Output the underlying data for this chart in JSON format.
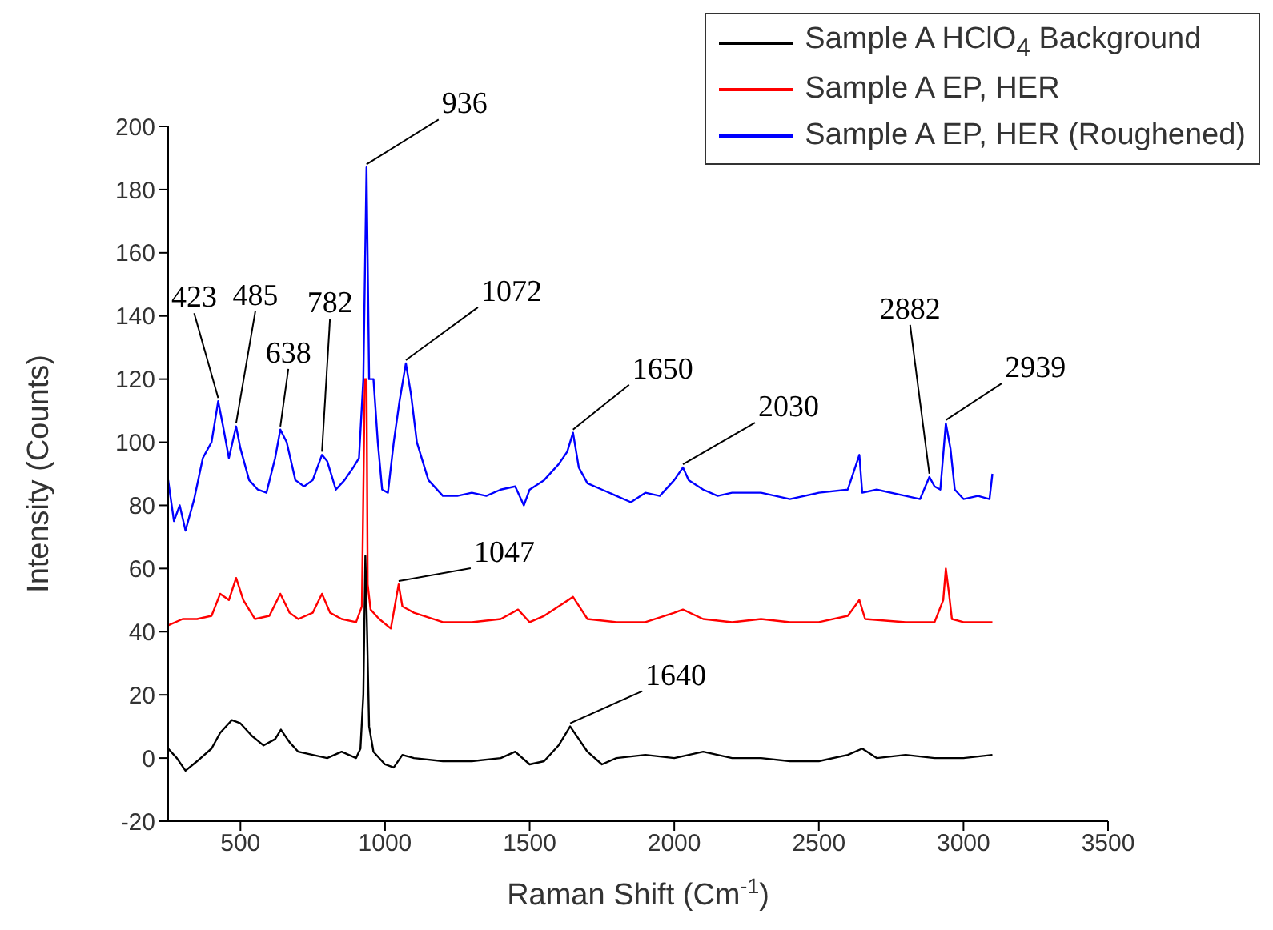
{
  "chart_data": {
    "type": "line",
    "xlabel": "Raman Shift (Cm$^{-1}$)",
    "ylabel": "Intensity (Counts)",
    "xlim": [
      250,
      3500
    ],
    "xticks": [
      500,
      1000,
      1500,
      2000,
      2500,
      3000,
      3500
    ],
    "ylim": [
      -20,
      200
    ],
    "yticks": [
      -20,
      0,
      20,
      40,
      60,
      80,
      100,
      120,
      140,
      160,
      180,
      200
    ],
    "grid": false,
    "legend": "top right",
    "marker": "none",
    "line_style": "solid",
    "series": [
      {
        "name": "Sample A HClO$_{4}$ Background",
        "color": "#000000",
        "x": [
          250,
          280,
          310,
          350,
          400,
          430,
          470,
          500,
          540,
          580,
          620,
          640,
          670,
          700,
          750,
          800,
          850,
          900,
          915,
          925,
          932,
          938,
          945,
          960,
          1000,
          1030,
          1060,
          1100,
          1200,
          1300,
          1400,
          1450,
          1500,
          1550,
          1600,
          1640,
          1670,
          1700,
          1750,
          1800,
          1900,
          2000,
          2100,
          2200,
          2300,
          2400,
          2500,
          2600,
          2650,
          2700,
          2800,
          2900,
          3000,
          3100
        ],
        "values": [
          3,
          0,
          -4,
          -1,
          3,
          8,
          12,
          11,
          7,
          4,
          6,
          9,
          5,
          2,
          1,
          0,
          2,
          0,
          3,
          20,
          64,
          40,
          10,
          2,
          -2,
          -3,
          1,
          0,
          -1,
          -1,
          0,
          2,
          -2,
          -1,
          4,
          10,
          6,
          2,
          -2,
          0,
          1,
          0,
          2,
          0,
          0,
          -1,
          -1,
          1,
          3,
          0,
          1,
          0,
          0,
          1
        ]
      },
      {
        "name": "Sample A EP, HER",
        "color": "#ff0000",
        "x": [
          250,
          300,
          350,
          400,
          430,
          460,
          485,
          510,
          550,
          600,
          638,
          670,
          700,
          750,
          782,
          810,
          850,
          900,
          920,
          930,
          936,
          940,
          950,
          980,
          1020,
          1047,
          1060,
          1100,
          1200,
          1300,
          1400,
          1460,
          1500,
          1550,
          1600,
          1650,
          1700,
          1800,
          1900,
          2000,
          2030,
          2100,
          2200,
          2300,
          2400,
          2500,
          2600,
          2640,
          2660,
          2800,
          2900,
          2930,
          2939,
          2950,
          2960,
          3000,
          3100
        ],
        "values": [
          42,
          44,
          44,
          45,
          52,
          50,
          57,
          50,
          44,
          45,
          52,
          46,
          44,
          46,
          52,
          46,
          44,
          43,
          48,
          120,
          120,
          55,
          47,
          44,
          41,
          55,
          48,
          46,
          43,
          43,
          44,
          47,
          43,
          45,
          48,
          51,
          44,
          43,
          43,
          46,
          47,
          44,
          43,
          44,
          43,
          43,
          45,
          50,
          44,
          43,
          43,
          50,
          60,
          52,
          44,
          43,
          43
        ]
      },
      {
        "name": "Sample A EP, HER (Roughened)",
        "color": "#0000ff",
        "x": [
          250,
          270,
          290,
          310,
          340,
          370,
          400,
          423,
          440,
          460,
          485,
          500,
          530,
          560,
          590,
          620,
          638,
          660,
          690,
          720,
          750,
          782,
          800,
          830,
          860,
          890,
          910,
          925,
          936,
          945,
          960,
          975,
          990,
          1010,
          1030,
          1050,
          1072,
          1090,
          1110,
          1150,
          1200,
          1250,
          1300,
          1350,
          1400,
          1450,
          1480,
          1500,
          1550,
          1600,
          1630,
          1650,
          1670,
          1700,
          1750,
          1800,
          1850,
          1900,
          1950,
          2000,
          2030,
          2050,
          2100,
          2150,
          2200,
          2300,
          2400,
          2500,
          2600,
          2640,
          2650,
          2700,
          2800,
          2850,
          2882,
          2900,
          2920,
          2939,
          2955,
          2970,
          3000,
          3050,
          3090,
          3100
        ],
        "values": [
          88,
          75,
          80,
          72,
          82,
          95,
          100,
          113,
          105,
          95,
          105,
          98,
          88,
          85,
          84,
          95,
          104,
          100,
          88,
          86,
          88,
          96,
          94,
          85,
          88,
          92,
          95,
          120,
          187,
          120,
          120,
          100,
          85,
          84,
          100,
          113,
          125,
          115,
          100,
          88,
          83,
          83,
          84,
          83,
          85,
          86,
          80,
          85,
          88,
          93,
          97,
          103,
          92,
          87,
          85,
          83,
          81,
          84,
          83,
          88,
          92,
          88,
          85,
          83,
          84,
          84,
          82,
          84,
          85,
          96,
          84,
          85,
          83,
          82,
          89,
          86,
          85,
          106,
          98,
          85,
          82,
          83,
          82,
          90
        ]
      }
    ],
    "annotations": [
      {
        "text": "423",
        "x": 423,
        "y": 113
      },
      {
        "text": "485",
        "x": 485,
        "y": 105
      },
      {
        "text": "638",
        "x": 638,
        "y": 104
      },
      {
        "text": "782",
        "x": 782,
        "y": 96
      },
      {
        "text": "936",
        "x": 936,
        "y": 187
      },
      {
        "text": "1072",
        "x": 1072,
        "y": 125
      },
      {
        "text": "1650",
        "x": 1650,
        "y": 103
      },
      {
        "text": "2030",
        "x": 2030,
        "y": 92
      },
      {
        "text": "2882",
        "x": 2882,
        "y": 89
      },
      {
        "text": "2939",
        "x": 2939,
        "y": 106
      },
      {
        "text": "1047",
        "x": 1047,
        "y": 55
      },
      {
        "text": "1640",
        "x": 1640,
        "y": 10
      }
    ]
  }
}
